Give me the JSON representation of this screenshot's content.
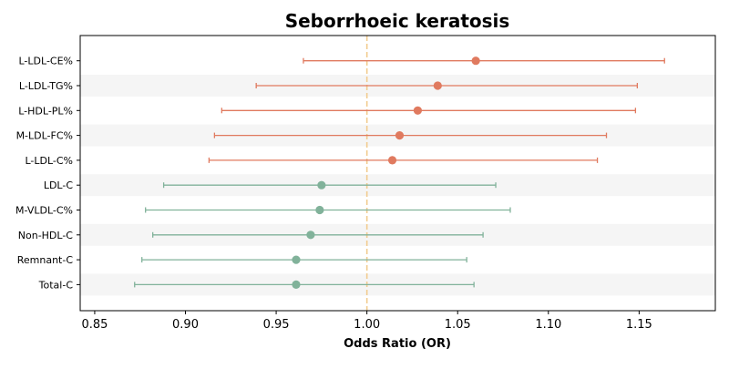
{
  "chart_data": {
    "type": "forest",
    "title": "Seborrhoeic keratosis",
    "xlabel": "Odds Ratio (OR)",
    "ylabel": "",
    "xlim": [
      0.842,
      1.192
    ],
    "xticks": [
      0.85,
      0.9,
      0.95,
      1.0,
      1.05,
      1.1,
      1.15
    ],
    "xtick_labels": [
      "0.85",
      "0.90",
      "0.95",
      "1.00",
      "1.05",
      "1.10",
      "1.15"
    ],
    "reference_line": 1.0,
    "grid": false,
    "legend": null,
    "items": [
      {
        "label": "L-LDL-CE%",
        "or": 1.06,
        "ci_low": 0.965,
        "ci_high": 1.164,
        "group": "increase"
      },
      {
        "label": "L-LDL-TG%",
        "or": 1.039,
        "ci_low": 0.939,
        "ci_high": 1.149,
        "group": "increase"
      },
      {
        "label": "L-HDL-PL%",
        "or": 1.028,
        "ci_low": 0.92,
        "ci_high": 1.148,
        "group": "increase"
      },
      {
        "label": "M-LDL-FC%",
        "or": 1.018,
        "ci_low": 0.916,
        "ci_high": 1.132,
        "group": "increase"
      },
      {
        "label": "L-LDL-C%",
        "or": 1.014,
        "ci_low": 0.913,
        "ci_high": 1.127,
        "group": "increase"
      },
      {
        "label": "LDL-C",
        "or": 0.975,
        "ci_low": 0.888,
        "ci_high": 1.071,
        "group": "decrease"
      },
      {
        "label": "M-VLDL-C%",
        "or": 0.974,
        "ci_low": 0.878,
        "ci_high": 1.079,
        "group": "decrease"
      },
      {
        "label": "Non-HDL-C",
        "or": 0.969,
        "ci_low": 0.882,
        "ci_high": 1.064,
        "group": "decrease"
      },
      {
        "label": "Remnant-C",
        "or": 0.961,
        "ci_low": 0.876,
        "ci_high": 1.055,
        "group": "decrease"
      },
      {
        "label": "Total-C",
        "or": 0.961,
        "ci_low": 0.872,
        "ci_high": 1.059,
        "group": "decrease"
      }
    ],
    "colors": {
      "increase": "#e07a5f",
      "decrease": "#81b29a",
      "reference_line": "#f2cc8f",
      "band": "#f5f5f5",
      "axis": "#000000"
    }
  }
}
